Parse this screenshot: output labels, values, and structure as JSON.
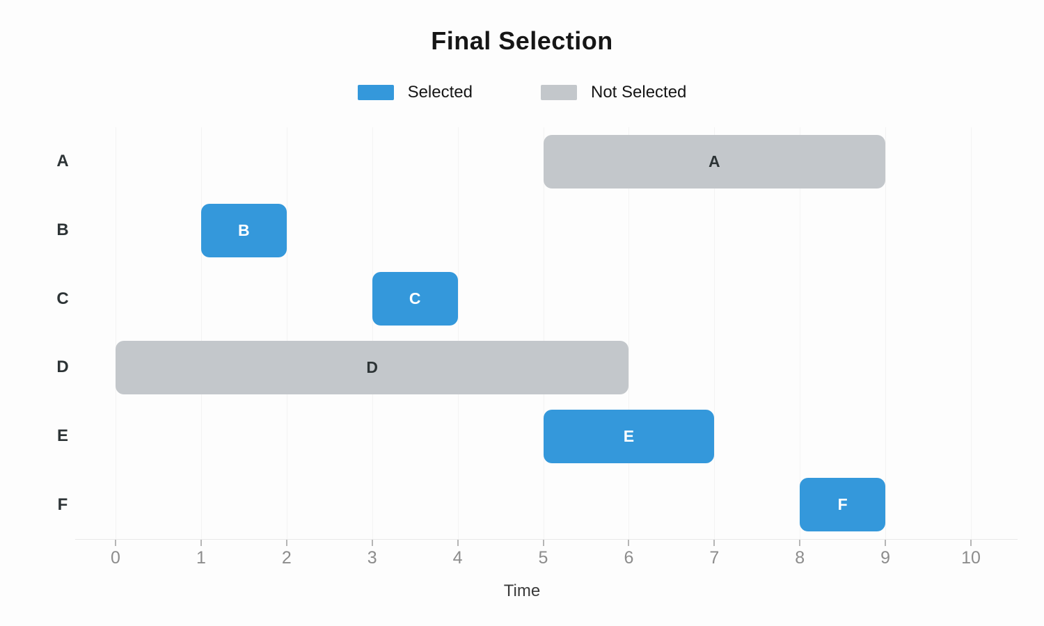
{
  "title": "Final Selection",
  "xlabel": "Time",
  "legend": [
    {
      "label": "Selected",
      "color": "#3498db"
    },
    {
      "label": "Not Selected",
      "color": "#c3c7cb"
    }
  ],
  "chart_data": {
    "type": "bar",
    "subtype": "gantt-horizontal",
    "title": "Final Selection",
    "xlabel": "Time",
    "categories": [
      "A",
      "B",
      "C",
      "D",
      "E",
      "F"
    ],
    "bars": [
      {
        "task": "A",
        "start": 5,
        "end": 9,
        "status": "not_selected"
      },
      {
        "task": "B",
        "start": 1,
        "end": 2,
        "status": "selected"
      },
      {
        "task": "C",
        "start": 3,
        "end": 4,
        "status": "selected"
      },
      {
        "task": "D",
        "start": 0,
        "end": 6,
        "status": "not_selected"
      },
      {
        "task": "E",
        "start": 5,
        "end": 7,
        "status": "selected"
      },
      {
        "task": "F",
        "start": 8,
        "end": 9,
        "status": "selected"
      }
    ],
    "x_ticks": [
      0,
      1,
      2,
      3,
      4,
      5,
      6,
      7,
      8,
      9,
      10
    ],
    "xlim": [
      0,
      10
    ],
    "grid": "vertical-faint",
    "legend_position": "top-center",
    "colors": {
      "selected": "#3498db",
      "not_selected": "#c3c7cb",
      "bar_label_selected": "#ffffff",
      "bar_label_not_selected": "#2d3436",
      "tick_label": "#8c8c8c",
      "row_label": "#2d3436"
    }
  }
}
